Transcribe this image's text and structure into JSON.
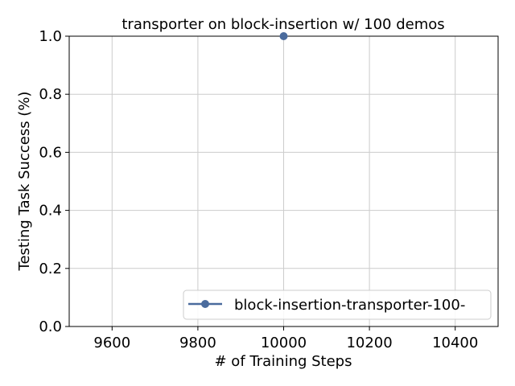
{
  "chart_data": {
    "type": "line",
    "title": "transporter on block-insertion w/ 100 demos",
    "xlabel": "# of Training Steps",
    "ylabel": "Testing Task Success (%)",
    "xlim": [
      9500,
      10500
    ],
    "ylim": [
      0.0,
      1.0
    ],
    "xticks": [
      9600,
      9800,
      10000,
      10200,
      10400
    ],
    "yticks": [
      0.0,
      0.2,
      0.4,
      0.6,
      0.8,
      1.0
    ],
    "xtick_labels": [
      "9600",
      "9800",
      "10000",
      "10200",
      "10400"
    ],
    "ytick_labels": [
      "0.0",
      "0.2",
      "0.4",
      "0.6",
      "0.8",
      "1.0"
    ],
    "grid": true,
    "legend_position": "lower-right",
    "series": [
      {
        "name": "block-insertion-transporter-100-",
        "color": "#4a6b9d",
        "marker": "circle",
        "x": [
          10000
        ],
        "y": [
          1.0
        ]
      }
    ]
  }
}
